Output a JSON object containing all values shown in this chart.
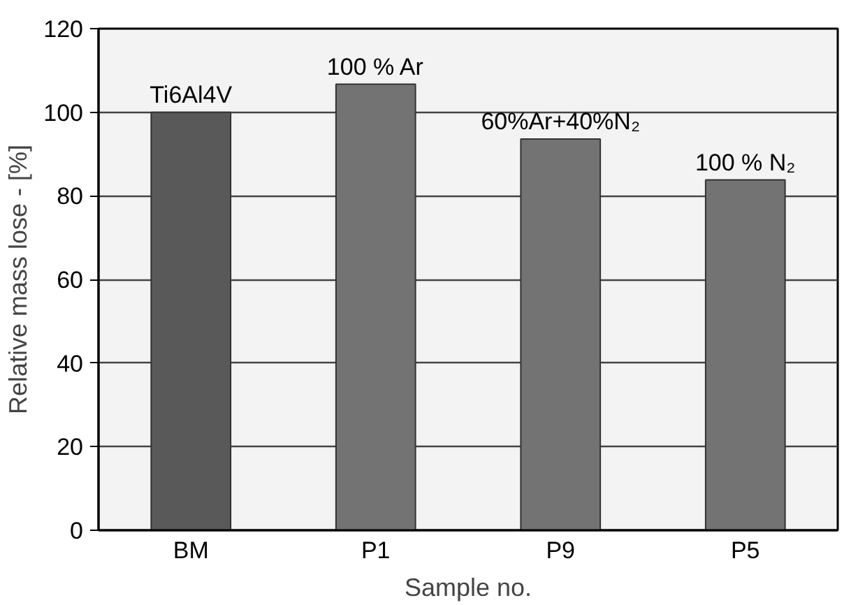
{
  "chart_data": {
    "type": "bar",
    "xlabel": "Sample no.",
    "ylabel": "Relative mass lose - [%]",
    "categories": [
      "BM",
      "P1",
      "P9",
      "P5"
    ],
    "values": [
      100,
      106.7,
      93.6,
      83.8
    ],
    "colors": [
      "#595959",
      "#737373",
      "#737373",
      "#737373"
    ],
    "ylim": [
      0,
      120
    ],
    "yticks": [
      0,
      20,
      40,
      60,
      80,
      100,
      120
    ],
    "grid": "y",
    "annotations": [
      {
        "text": "Ti6Al4V",
        "x": "BM",
        "y": 100
      },
      {
        "text": "100 % Ar",
        "x": "P1",
        "y": 106.7
      },
      {
        "text": "60%Ar+40%N₂",
        "x": "P9",
        "y": 93.6
      },
      {
        "text": "100 % N₂",
        "x": "P5",
        "y": 83.8
      }
    ]
  }
}
